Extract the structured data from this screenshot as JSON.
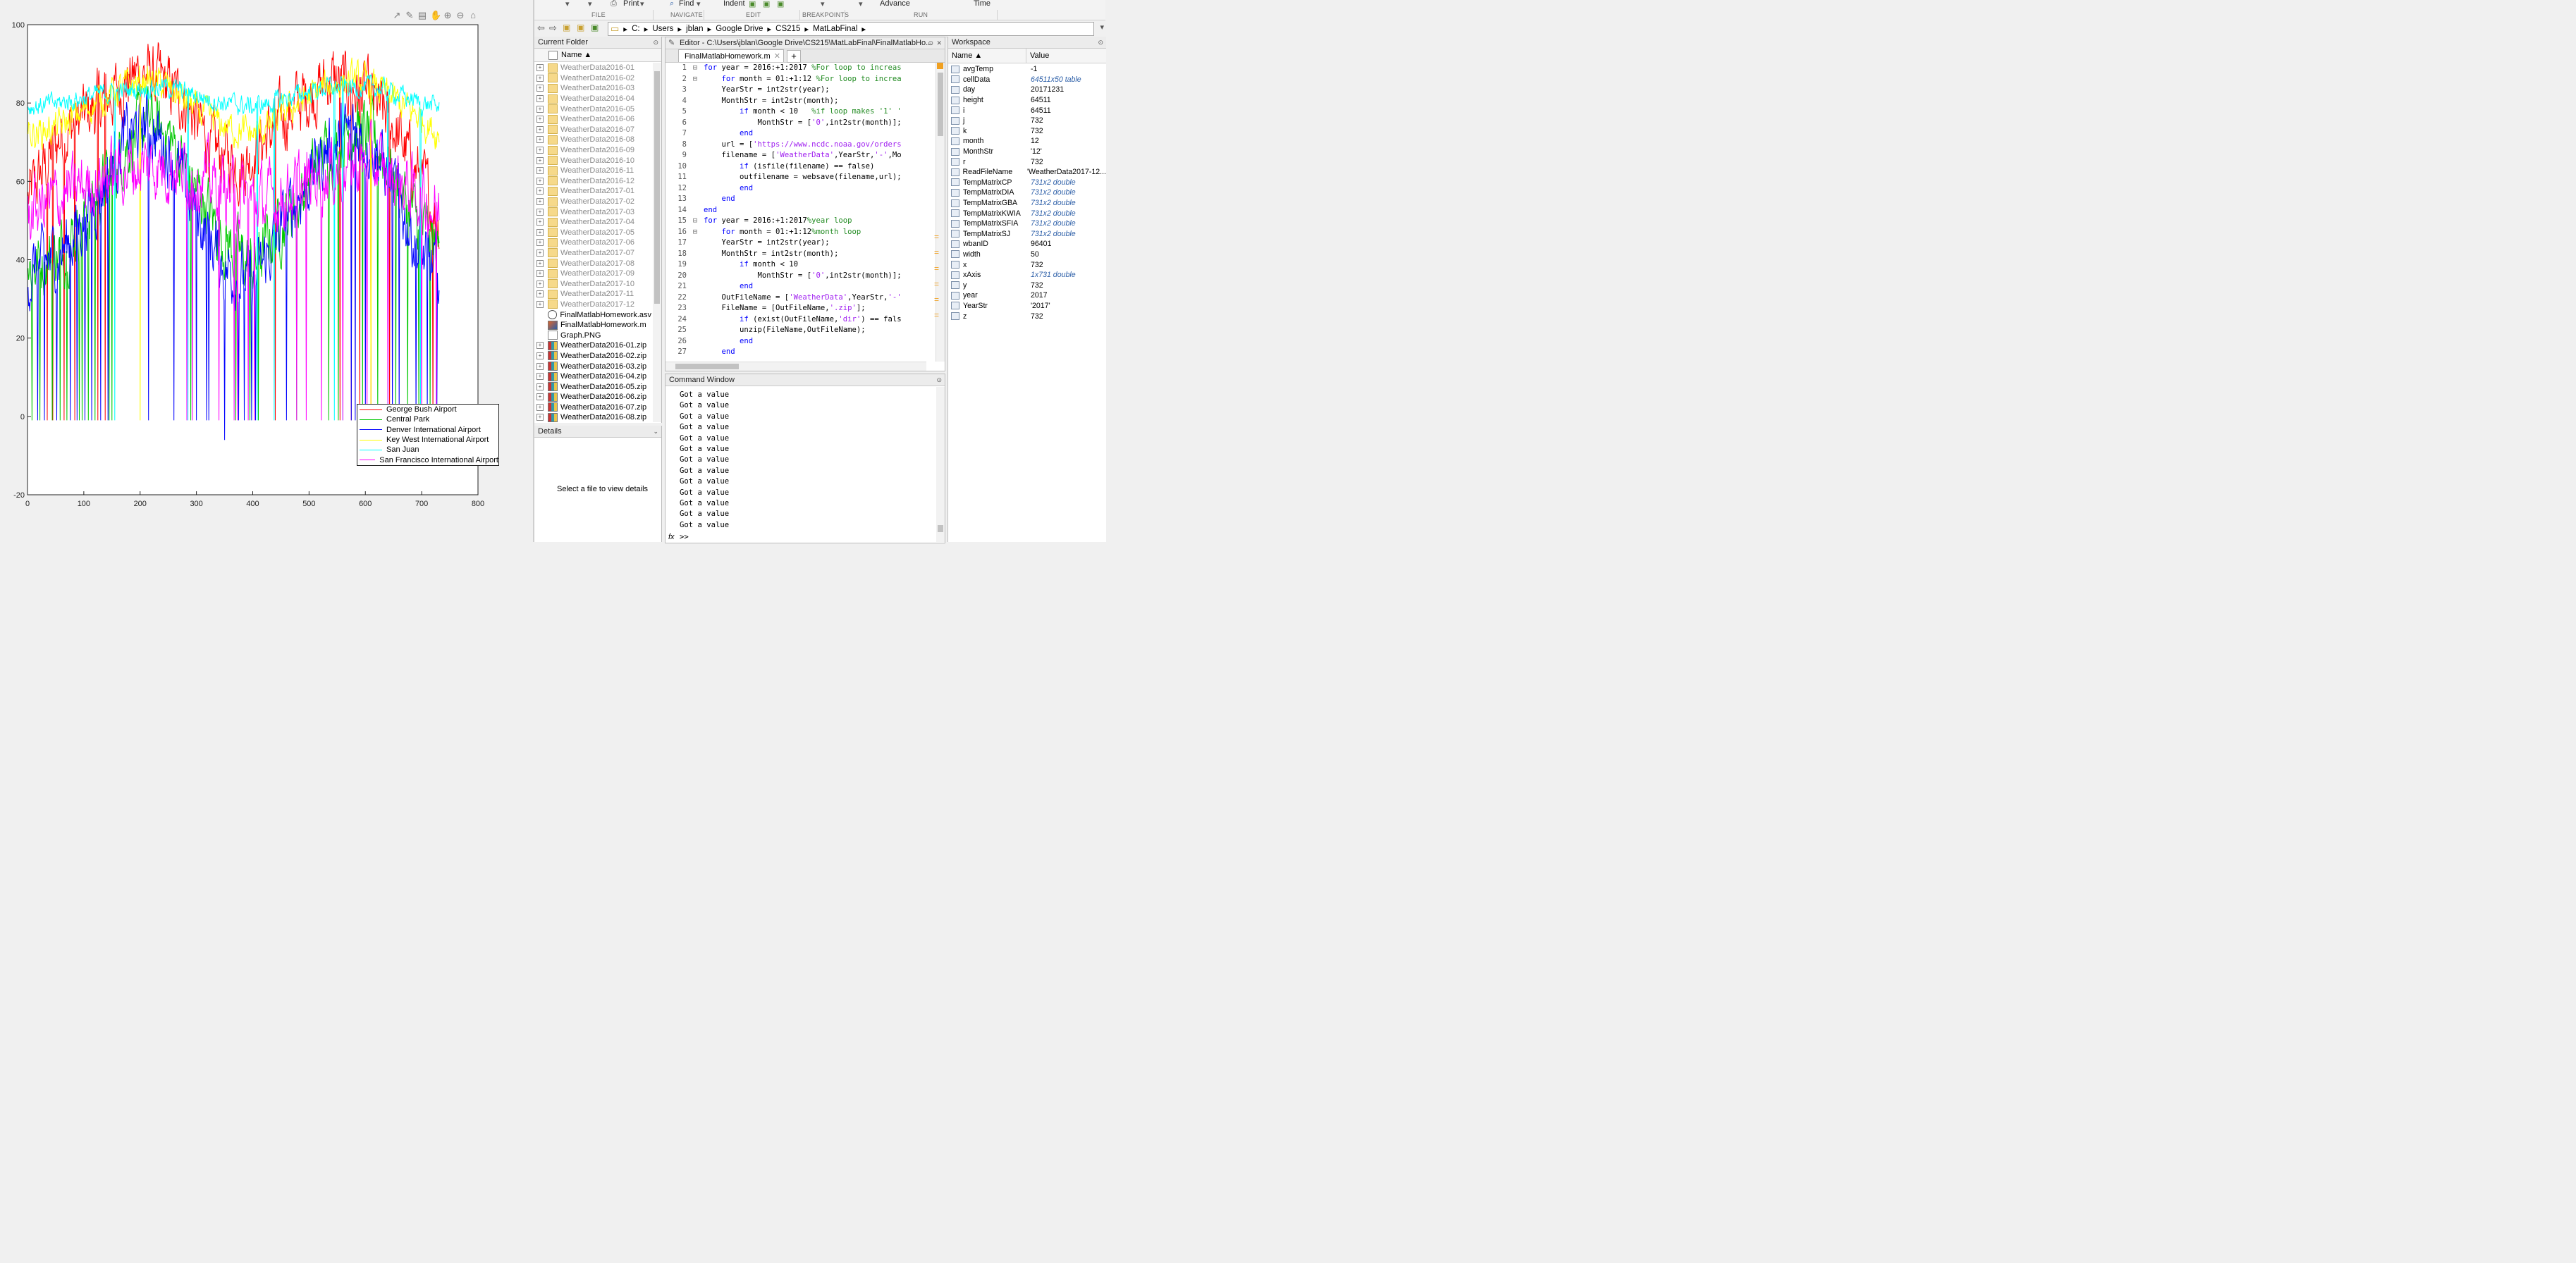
{
  "figure": {
    "chart_data": {
      "type": "line",
      "xlim": [
        0,
        800
      ],
      "ylim": [
        -20,
        100
      ],
      "xticks": [
        0,
        100,
        200,
        300,
        400,
        500,
        600,
        700,
        800
      ],
      "yticks": [
        -20,
        0,
        20,
        40,
        60,
        80,
        100
      ],
      "n_points": 731,
      "legend_position": "lower-right",
      "series": [
        {
          "name": "George Bush Airport",
          "color": "#ff0000",
          "baseline": [
            [
              0,
              55
            ],
            [
              60,
              72
            ],
            [
              150,
              82
            ],
            [
              200,
              88
            ],
            [
              230,
              86
            ],
            [
              280,
              80
            ],
            [
              330,
              68
            ],
            [
              380,
              64
            ],
            [
              430,
              72
            ],
            [
              480,
              80
            ],
            [
              540,
              86
            ],
            [
              600,
              82
            ],
            [
              650,
              74
            ],
            [
              700,
              60
            ],
            [
              730,
              50
            ]
          ],
          "drops": [
            35,
            45,
            65,
            84,
            125,
            138,
            440,
            555,
            575,
            590,
            610,
            643,
            720
          ]
        },
        {
          "name": "Central Park",
          "color": "#00c800",
          "baseline": [
            [
              0,
              38
            ],
            [
              60,
              42
            ],
            [
              120,
              55
            ],
            [
              170,
              68
            ],
            [
              210,
              75
            ],
            [
              250,
              72
            ],
            [
              300,
              58
            ],
            [
              350,
              45
            ],
            [
              400,
              38
            ],
            [
              430,
              45
            ],
            [
              480,
              55
            ],
            [
              530,
              68
            ],
            [
              580,
              74
            ],
            [
              620,
              70
            ],
            [
              660,
              58
            ],
            [
              700,
              48
            ],
            [
              730,
              42
            ]
          ],
          "drops": [
            8,
            22,
            44,
            58,
            70,
            92,
            97,
            108,
            120,
            145,
            150,
            290,
            370,
            395,
            410,
            478,
            535,
            552,
            595,
            622,
            654,
            675,
            695,
            715
          ]
        },
        {
          "name": "Denver International Airport",
          "color": "#0000ff",
          "baseline": [
            [
              0,
              36
            ],
            [
              60,
              42
            ],
            [
              120,
              55
            ],
            [
              170,
              70
            ],
            [
              210,
              75
            ],
            [
              250,
              68
            ],
            [
              300,
              52
            ],
            [
              350,
              38
            ],
            [
              400,
              34
            ],
            [
              430,
              42
            ],
            [
              480,
              56
            ],
            [
              530,
              68
            ],
            [
              580,
              73
            ],
            [
              620,
              68
            ],
            [
              660,
              55
            ],
            [
              700,
              40
            ],
            [
              730,
              36
            ]
          ],
          "drops": [
            18,
            30,
            52,
            76,
            88,
            102,
            114,
            130,
            143,
            215,
            260,
            300,
            318,
            322,
            350,
            375,
            385,
            398,
            405,
            460,
            575,
            582,
            600,
            648,
            660,
            690,
            710,
            727
          ]
        },
        {
          "name": "Key West International Airport",
          "color": "#ffff00",
          "baseline": [
            [
              0,
              72
            ],
            [
              60,
              74
            ],
            [
              120,
              80
            ],
            [
              170,
              84
            ],
            [
              210,
              86
            ],
            [
              250,
              84
            ],
            [
              300,
              78
            ],
            [
              350,
              74
            ],
            [
              400,
              72
            ],
            [
              430,
              74
            ],
            [
              480,
              80
            ],
            [
              530,
              84
            ],
            [
              580,
              86
            ],
            [
              620,
              84
            ],
            [
              660,
              80
            ],
            [
              700,
              76
            ],
            [
              730,
              72
            ]
          ],
          "drops": [
            200,
            610
          ]
        },
        {
          "name": "San Juan",
          "color": "#00ffff",
          "baseline": [
            [
              0,
              79
            ],
            [
              60,
              80
            ],
            [
              120,
              82
            ],
            [
              170,
              83
            ],
            [
              210,
              84
            ],
            [
              250,
              84
            ],
            [
              300,
              82
            ],
            [
              350,
              80
            ],
            [
              400,
              79
            ],
            [
              430,
              80
            ],
            [
              480,
              82
            ],
            [
              530,
              84
            ],
            [
              580,
              84
            ],
            [
              620,
              84
            ],
            [
              660,
              82
            ],
            [
              700,
              80
            ],
            [
              730,
              79
            ]
          ],
          "drops": [
            155,
            285,
            408,
            438,
            545,
            560,
            640,
            698
          ]
        },
        {
          "name": "San Francisco International Airport",
          "color": "#ff00ff",
          "baseline": [
            [
              0,
              52
            ],
            [
              60,
              56
            ],
            [
              120,
              60
            ],
            [
              170,
              63
            ],
            [
              210,
              64
            ],
            [
              250,
              64
            ],
            [
              300,
              62
            ],
            [
              350,
              58
            ],
            [
              400,
              55
            ],
            [
              430,
              55
            ],
            [
              480,
              58
            ],
            [
              530,
              62
            ],
            [
              580,
              64
            ],
            [
              620,
              64
            ],
            [
              660,
              60
            ],
            [
              700,
              56
            ],
            [
              730,
              52
            ]
          ],
          "drops": [
            283,
            293,
            340,
            367,
            373,
            392,
            403,
            478,
            495,
            522,
            560,
            603,
            640,
            700,
            726
          ]
        }
      ]
    }
  },
  "toolstrip": {
    "print": "Print",
    "find": "Find",
    "indent": "Indent",
    "advance": "Advance",
    "time": "Time",
    "sections": [
      "FILE",
      "NAVIGATE",
      "EDIT",
      "BREAKPOINTS",
      "RUN"
    ]
  },
  "address": {
    "path": [
      "C:",
      "Users",
      "jblan",
      "Google Drive",
      "CS215",
      "MatLabFinal"
    ]
  },
  "current_folder": {
    "title": "Current Folder",
    "col_name": "Name ▲",
    "items": [
      {
        "label": "WeatherData2016-01",
        "kind": "folder"
      },
      {
        "label": "WeatherData2016-02",
        "kind": "folder"
      },
      {
        "label": "WeatherData2016-03",
        "kind": "folder"
      },
      {
        "label": "WeatherData2016-04",
        "kind": "folder"
      },
      {
        "label": "WeatherData2016-05",
        "kind": "folder"
      },
      {
        "label": "WeatherData2016-06",
        "kind": "folder"
      },
      {
        "label": "WeatherData2016-07",
        "kind": "folder"
      },
      {
        "label": "WeatherData2016-08",
        "kind": "folder"
      },
      {
        "label": "WeatherData2016-09",
        "kind": "folder"
      },
      {
        "label": "WeatherData2016-10",
        "kind": "folder"
      },
      {
        "label": "WeatherData2016-11",
        "kind": "folder"
      },
      {
        "label": "WeatherData2016-12",
        "kind": "folder"
      },
      {
        "label": "WeatherData2017-01",
        "kind": "folder"
      },
      {
        "label": "WeatherData2017-02",
        "kind": "folder"
      },
      {
        "label": "WeatherData2017-03",
        "kind": "folder"
      },
      {
        "label": "WeatherData2017-04",
        "kind": "folder"
      },
      {
        "label": "WeatherData2017-05",
        "kind": "folder"
      },
      {
        "label": "WeatherData2017-06",
        "kind": "folder"
      },
      {
        "label": "WeatherData2017-07",
        "kind": "folder"
      },
      {
        "label": "WeatherData2017-08",
        "kind": "folder"
      },
      {
        "label": "WeatherData2017-09",
        "kind": "folder"
      },
      {
        "label": "WeatherData2017-10",
        "kind": "folder"
      },
      {
        "label": "WeatherData2017-11",
        "kind": "folder"
      },
      {
        "label": "WeatherData2017-12",
        "kind": "folder"
      },
      {
        "label": "FinalMatlabHomework.asv",
        "kind": "asv"
      },
      {
        "label": "FinalMatlabHomework.m",
        "kind": "m"
      },
      {
        "label": "Graph.PNG",
        "kind": "png"
      },
      {
        "label": "WeatherData2016-01.zip",
        "kind": "zip"
      },
      {
        "label": "WeatherData2016-02.zip",
        "kind": "zip"
      },
      {
        "label": "WeatherData2016-03.zip",
        "kind": "zip"
      },
      {
        "label": "WeatherData2016-04.zip",
        "kind": "zip"
      },
      {
        "label": "WeatherData2016-05.zip",
        "kind": "zip"
      },
      {
        "label": "WeatherData2016-06.zip",
        "kind": "zip"
      },
      {
        "label": "WeatherData2016-07.zip",
        "kind": "zip"
      },
      {
        "label": "WeatherData2016-08.zip",
        "kind": "zip"
      }
    ]
  },
  "details": {
    "title": "Details",
    "empty_text": "Select a file to view details"
  },
  "editor": {
    "title": "Editor - C:\\Users\\jblan\\Google Drive\\CS215\\MatLabFinal\\FinalMatlabHo...",
    "tab": "FinalMatlabHomework.m",
    "lines": [
      {
        "n": "1",
        "fold": "⊟",
        "html": "<span class='kw'>for</span> year = 2016:+1:2017 <span class='cm'>%For loop to increas</span>"
      },
      {
        "n": "2",
        "fold": "⊟",
        "html": "    <span class='kw'>for</span> month = 01:+1:12 <span class='cm'>%For loop to increa</span>"
      },
      {
        "n": "3",
        "fold": "",
        "html": "    YearStr = int2str(year);"
      },
      {
        "n": "4",
        "fold": "",
        "html": "    MonthStr = int2str(month);"
      },
      {
        "n": "5",
        "fold": "",
        "html": "        <span class='kw'>if</span> month &lt; 10   <span class='cm'>%if loop makes '1' '</span>"
      },
      {
        "n": "6",
        "fold": "",
        "html": "            MonthStr = [<span class='st'>'0'</span>,int2str(month)];"
      },
      {
        "n": "7",
        "fold": "",
        "html": "        <span class='kw'>end</span>"
      },
      {
        "n": "8",
        "fold": "",
        "html": "    url = [<span class='st'>'https://www.ncdc.noaa.gov/orders</span>"
      },
      {
        "n": "9",
        "fold": "",
        "html": "    filename = [<span class='st'>'WeatherData'</span>,YearStr,<span class='st'>'-'</span>,Mo"
      },
      {
        "n": "10",
        "fold": "",
        "html": "        <span class='kw'>if</span> (isfile(filename) == false)"
      },
      {
        "n": "11",
        "fold": "",
        "html": "        outfilename = websave(filename,url);"
      },
      {
        "n": "12",
        "fold": "",
        "html": "        <span class='kw'>end</span>"
      },
      {
        "n": "13",
        "fold": "",
        "html": "    <span class='kw'>end</span>"
      },
      {
        "n": "14",
        "fold": "",
        "html": "<span class='kw'>end</span>"
      },
      {
        "n": "15",
        "fold": "⊟",
        "html": "<span class='kw'>for</span> year = 2016:+1:2017<span class='cm'>%year loop</span>"
      },
      {
        "n": "16",
        "fold": "⊟",
        "html": "    <span class='kw'>for</span> month = 01:+1:12<span class='cm'>%month loop</span>"
      },
      {
        "n": "17",
        "fold": "",
        "html": "    YearStr = int2str(year);"
      },
      {
        "n": "18",
        "fold": "",
        "html": "    MonthStr = int2str(month);"
      },
      {
        "n": "19",
        "fold": "",
        "html": "        <span class='kw'>if</span> month &lt; 10"
      },
      {
        "n": "20",
        "fold": "",
        "html": "            MonthStr = [<span class='st'>'0'</span>,int2str(month)];"
      },
      {
        "n": "21",
        "fold": "",
        "html": "        <span class='kw'>end</span>"
      },
      {
        "n": "22",
        "fold": "",
        "html": "    OutFileName = [<span class='st'>'WeatherData'</span>,YearStr,<span class='st'>'-'</span>"
      },
      {
        "n": "23",
        "fold": "",
        "html": "    FileName = [OutFileName,<span class='st'>'.zip'</span>];"
      },
      {
        "n": "24",
        "fold": "",
        "html": "        <span class='kw'>if</span> (exist(OutFileName,<span class='st'>'dir'</span>) == fals"
      },
      {
        "n": "25",
        "fold": "",
        "html": "        unzip(FileName,OutFileName);"
      },
      {
        "n": "26",
        "fold": "",
        "html": "        <span class='kw'>end</span>"
      },
      {
        "n": "27",
        "fold": "",
        "html": "    <span class='kw'>end</span>"
      }
    ]
  },
  "command_window": {
    "title": "Command Window",
    "lines": [
      "Got a value",
      "Got a value",
      "Got a value",
      "Got a value",
      "Got a value",
      "Got a value",
      "Got a value",
      "Got a value",
      "Got a value",
      "Got a value",
      "Got a value",
      "Got a value",
      "Got a value"
    ],
    "prompt": ">>",
    "fx": "fx"
  },
  "workspace": {
    "title": "Workspace",
    "col_name": "Name ▲",
    "col_value": "Value",
    "vars": [
      {
        "name": "avgTemp",
        "value": "-1",
        "obj": false
      },
      {
        "name": "cellData",
        "value": "64511x50 table",
        "obj": true
      },
      {
        "name": "day",
        "value": "20171231",
        "obj": false
      },
      {
        "name": "height",
        "value": "64511",
        "obj": false
      },
      {
        "name": "i",
        "value": "64511",
        "obj": false
      },
      {
        "name": "j",
        "value": "732",
        "obj": false
      },
      {
        "name": "k",
        "value": "732",
        "obj": false
      },
      {
        "name": "month",
        "value": "12",
        "obj": false
      },
      {
        "name": "MonthStr",
        "value": "'12'",
        "obj": false
      },
      {
        "name": "r",
        "value": "732",
        "obj": false
      },
      {
        "name": "ReadFileName",
        "value": "'WeatherData2017-12...",
        "obj": false
      },
      {
        "name": "TempMatrixCP",
        "value": "731x2 double",
        "obj": true
      },
      {
        "name": "TempMatrixDIA",
        "value": "731x2 double",
        "obj": true
      },
      {
        "name": "TempMatrixGBA",
        "value": "731x2 double",
        "obj": true
      },
      {
        "name": "TempMatrixKWIA",
        "value": "731x2 double",
        "obj": true
      },
      {
        "name": "TempMatrixSFIA",
        "value": "731x2 double",
        "obj": true
      },
      {
        "name": "TempMatrixSJ",
        "value": "731x2 double",
        "obj": true
      },
      {
        "name": "wbanID",
        "value": "96401",
        "obj": false
      },
      {
        "name": "width",
        "value": "50",
        "obj": false
      },
      {
        "name": "x",
        "value": "732",
        "obj": false
      },
      {
        "name": "xAxis",
        "value": "1x731 double",
        "obj": true
      },
      {
        "name": "y",
        "value": "732",
        "obj": false
      },
      {
        "name": "year",
        "value": "2017",
        "obj": false
      },
      {
        "name": "YearStr",
        "value": "'2017'",
        "obj": false
      },
      {
        "name": "z",
        "value": "732",
        "obj": false
      }
    ]
  }
}
